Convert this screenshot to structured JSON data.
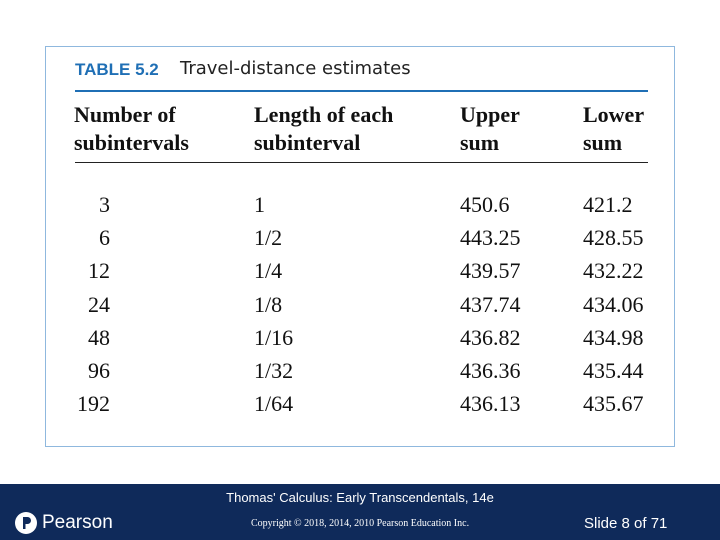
{
  "table": {
    "label": "TABLE 5.2",
    "title": "Travel-distance estimates",
    "headers": [
      "Number of subintervals",
      "Length of each subinterval",
      "Upper sum",
      "Lower sum"
    ],
    "rows": [
      [
        "3",
        "1",
        "450.6",
        "421.2"
      ],
      [
        "6",
        "1/2",
        "443.25",
        "428.55"
      ],
      [
        "12",
        "1/4",
        "439.57",
        "432.22"
      ],
      [
        "24",
        "1/8",
        "437.74",
        "434.06"
      ],
      [
        "48",
        "1/16",
        "436.82",
        "434.98"
      ],
      [
        "96",
        "1/32",
        "436.36",
        "435.44"
      ],
      [
        "192",
        "1/64",
        "436.13",
        "435.67"
      ]
    ]
  },
  "footer": {
    "logo": "Pearson",
    "book": "Thomas' Calculus: Early Transcendentals, 14e",
    "copyright": "Copyright © 2018, 2014, 2010 Pearson Education Inc.",
    "slide": "Slide 8 of 71"
  }
}
